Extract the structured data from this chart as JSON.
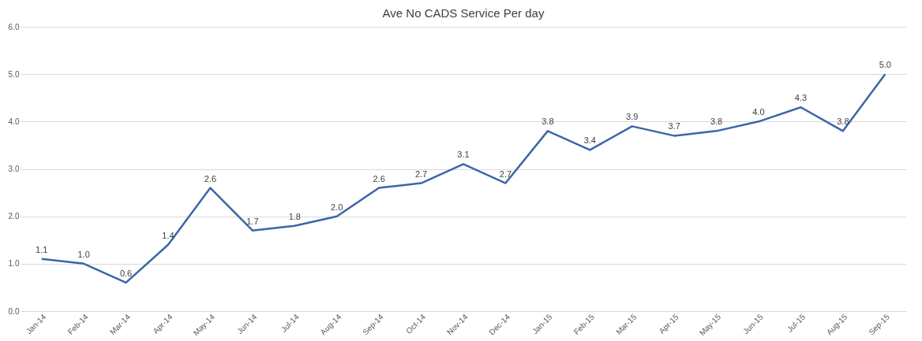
{
  "chart_data": {
    "type": "line",
    "title": "Ave No CADS Service Per day",
    "categories": [
      "Jan-14",
      "Feb-14",
      "Mar-14",
      "Apr-14",
      "May-14",
      "Jun-14",
      "Jul-14",
      "Aug-14",
      "Sep-14",
      "Oct-14",
      "Nov-14",
      "Dec-14",
      "Jan-15",
      "Feb-15",
      "Mar-15",
      "Apr-15",
      "May-15",
      "Jun-15",
      "Jul-15",
      "Aug-15",
      "Sep-15"
    ],
    "series": [
      {
        "color": "#3d65a8",
        "values": [
          1.1,
          1.0,
          0.6,
          1.4,
          2.6,
          1.7,
          1.8,
          2.0,
          2.6,
          2.7,
          3.1,
          2.7,
          3.8,
          3.4,
          3.9,
          3.7,
          3.8,
          4.0,
          4.3,
          3.8,
          5.0
        ],
        "value_labels": [
          "1.1",
          "1.0",
          "0.6",
          "1.4",
          "2.6",
          "1.7",
          "1.8",
          "2.0",
          "2.6",
          "2.7",
          "3.1",
          "2.7",
          "3.8",
          "3.4",
          "3.9",
          "3.7",
          "3.8",
          "4.0",
          "4.3",
          "3.8",
          "5.0"
        ]
      }
    ],
    "ylim": [
      0,
      6
    ],
    "yticks": [
      {
        "value": 0,
        "label": "0.0"
      },
      {
        "value": 1,
        "label": "1.0"
      },
      {
        "value": 2,
        "label": "2.0"
      },
      {
        "value": 3,
        "label": "3.0"
      },
      {
        "value": 4,
        "label": "4.0"
      },
      {
        "value": 5,
        "label": "5.0"
      },
      {
        "value": 6,
        "label": "6.0"
      }
    ],
    "grid": "y",
    "marker": "none",
    "line_style": "solid"
  }
}
